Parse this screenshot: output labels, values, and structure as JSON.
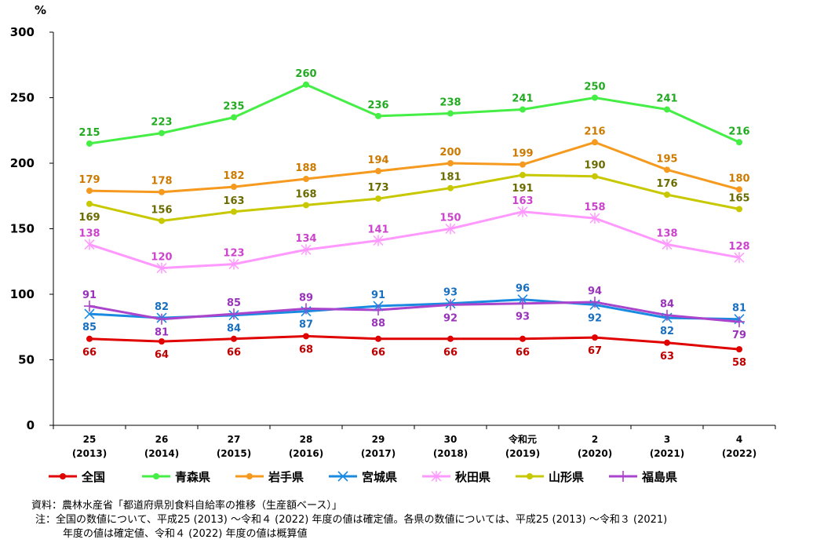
{
  "chart_data": {
    "type": "line",
    "ylabel": "%",
    "ylim": [
      0,
      300
    ],
    "yticks": [
      0,
      50,
      100,
      150,
      200,
      250,
      300
    ],
    "categories": [
      [
        "25",
        "(2013)"
      ],
      [
        "26",
        "(2014)"
      ],
      [
        "27",
        "(2015)"
      ],
      [
        "28",
        "(2016)"
      ],
      [
        "29",
        "(2017)"
      ],
      [
        "30",
        "(2018)"
      ],
      [
        "令和元",
        "(2019)"
      ],
      [
        "2",
        "(2020)"
      ],
      [
        "3",
        "(2021)"
      ],
      [
        "4",
        "(2022)"
      ]
    ],
    "grid": false,
    "legend": "bottom",
    "series": [
      {
        "name": "全国",
        "color": "#e00000",
        "marker": "circle",
        "values": [
          66,
          64,
          66,
          68,
          66,
          66,
          66,
          67,
          63,
          58
        ],
        "label_pos": "below"
      },
      {
        "name": "青森県",
        "color": "#44ee44",
        "marker": "circle",
        "values": [
          215,
          223,
          235,
          260,
          236,
          238,
          241,
          250,
          241,
          216
        ],
        "label_pos": "above"
      },
      {
        "name": "岩手県",
        "color": "#f59a1e",
        "marker": "circle",
        "values": [
          179,
          178,
          182,
          188,
          194,
          200,
          199,
          216,
          195,
          180
        ],
        "label_pos": "above"
      },
      {
        "name": "宮城県",
        "color": "#1a8ae0",
        "marker": "x",
        "values": [
          85,
          82,
          84,
          87,
          91,
          93,
          96,
          92,
          82,
          81
        ],
        "label_pos": [
          "below",
          "above",
          "below",
          "below",
          "above",
          "above",
          "above",
          "below",
          "below",
          "above"
        ]
      },
      {
        "name": "秋田県",
        "color": "#ff99ff",
        "marker": "star",
        "values": [
          138,
          120,
          123,
          134,
          141,
          150,
          163,
          158,
          138,
          128
        ],
        "label_pos": "above"
      },
      {
        "name": "山形県",
        "color": "#c8c800",
        "marker": "circle",
        "values": [
          169,
          156,
          163,
          168,
          173,
          181,
          191,
          190,
          176,
          165
        ],
        "label_pos": [
          "below",
          "above",
          "above",
          "above",
          "above",
          "above",
          "below",
          "above",
          "above",
          "above"
        ]
      },
      {
        "name": "福島県",
        "color": "#aa44cc",
        "marker": "plus",
        "values": [
          91,
          81,
          85,
          89,
          88,
          92,
          93,
          94,
          84,
          79
        ],
        "label_pos": [
          "above",
          "below",
          "above",
          "above",
          "below",
          "below",
          "below",
          "above",
          "above",
          "below"
        ]
      }
    ]
  },
  "label_colors": {
    "全国": "#c00000",
    "青森県": "#22aa22",
    "岩手県": "#cc7a00",
    "宮城県": "#1a70c0",
    "秋田県": "#cc44cc",
    "山形県": "#6b6b00",
    "福島県": "#9933bb"
  },
  "notes": {
    "source": "資料：農林水産省「都道府県別食料自給率の推移（生産額ベース）」",
    "note1": "注：全国の数値について、平成25 (2013) ～令和４ (2022) 年度の値は確定値。各県の数値については、平成25 (2013) ～令和３ (2021)",
    "note2": "年度の値は確定値、令和４ (2022) 年度の値は概算値"
  }
}
